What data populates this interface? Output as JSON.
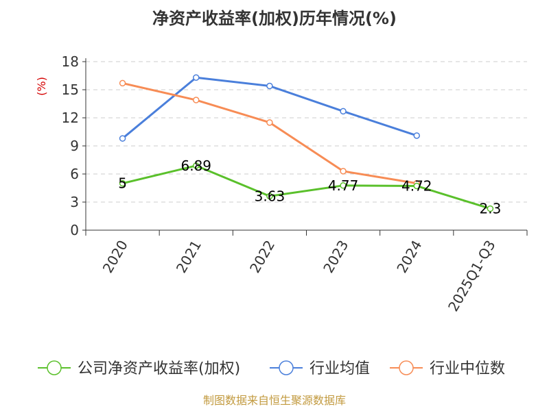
{
  "chart_data": {
    "type": "line",
    "title": "净资产收益率(加权)历年情况(%)",
    "ylabel": "(%)",
    "xlabel": "",
    "categories": [
      "2020",
      "2021",
      "2022",
      "2023",
      "2024",
      "2025Q1-Q3"
    ],
    "ylim": [
      0,
      18
    ],
    "yticks": [
      0,
      3,
      6,
      9,
      12,
      15,
      18
    ],
    "ytick_labels": [
      "0",
      "3",
      "6",
      "9",
      "12",
      "15",
      "18"
    ],
    "grid": true,
    "legend_position": "bottom",
    "series": [
      {
        "name": "公司净资产收益率(加权)",
        "color": "#5ac02b",
        "values": [
          5,
          6.89,
          3.63,
          4.77,
          4.72,
          2.3
        ],
        "data_labels": [
          "5",
          "6.89",
          "3.63",
          "4.77",
          "4.72",
          "2.3"
        ]
      },
      {
        "name": "行业均值",
        "color": "#4a7fdb",
        "values": [
          9.8,
          16.3,
          15.4,
          12.7,
          10.1,
          null
        ]
      },
      {
        "name": "行业中位数",
        "color": "#f78c55",
        "values": [
          15.7,
          13.9,
          11.5,
          6.3,
          5.0,
          null
        ]
      }
    ]
  },
  "source": "制图数据来自恒生聚源数据库",
  "colors": {
    "title": "#333333",
    "axis": "#333333",
    "grid": "#cccccc",
    "ylabel": "#d50000",
    "source": "#c29a3f"
  }
}
